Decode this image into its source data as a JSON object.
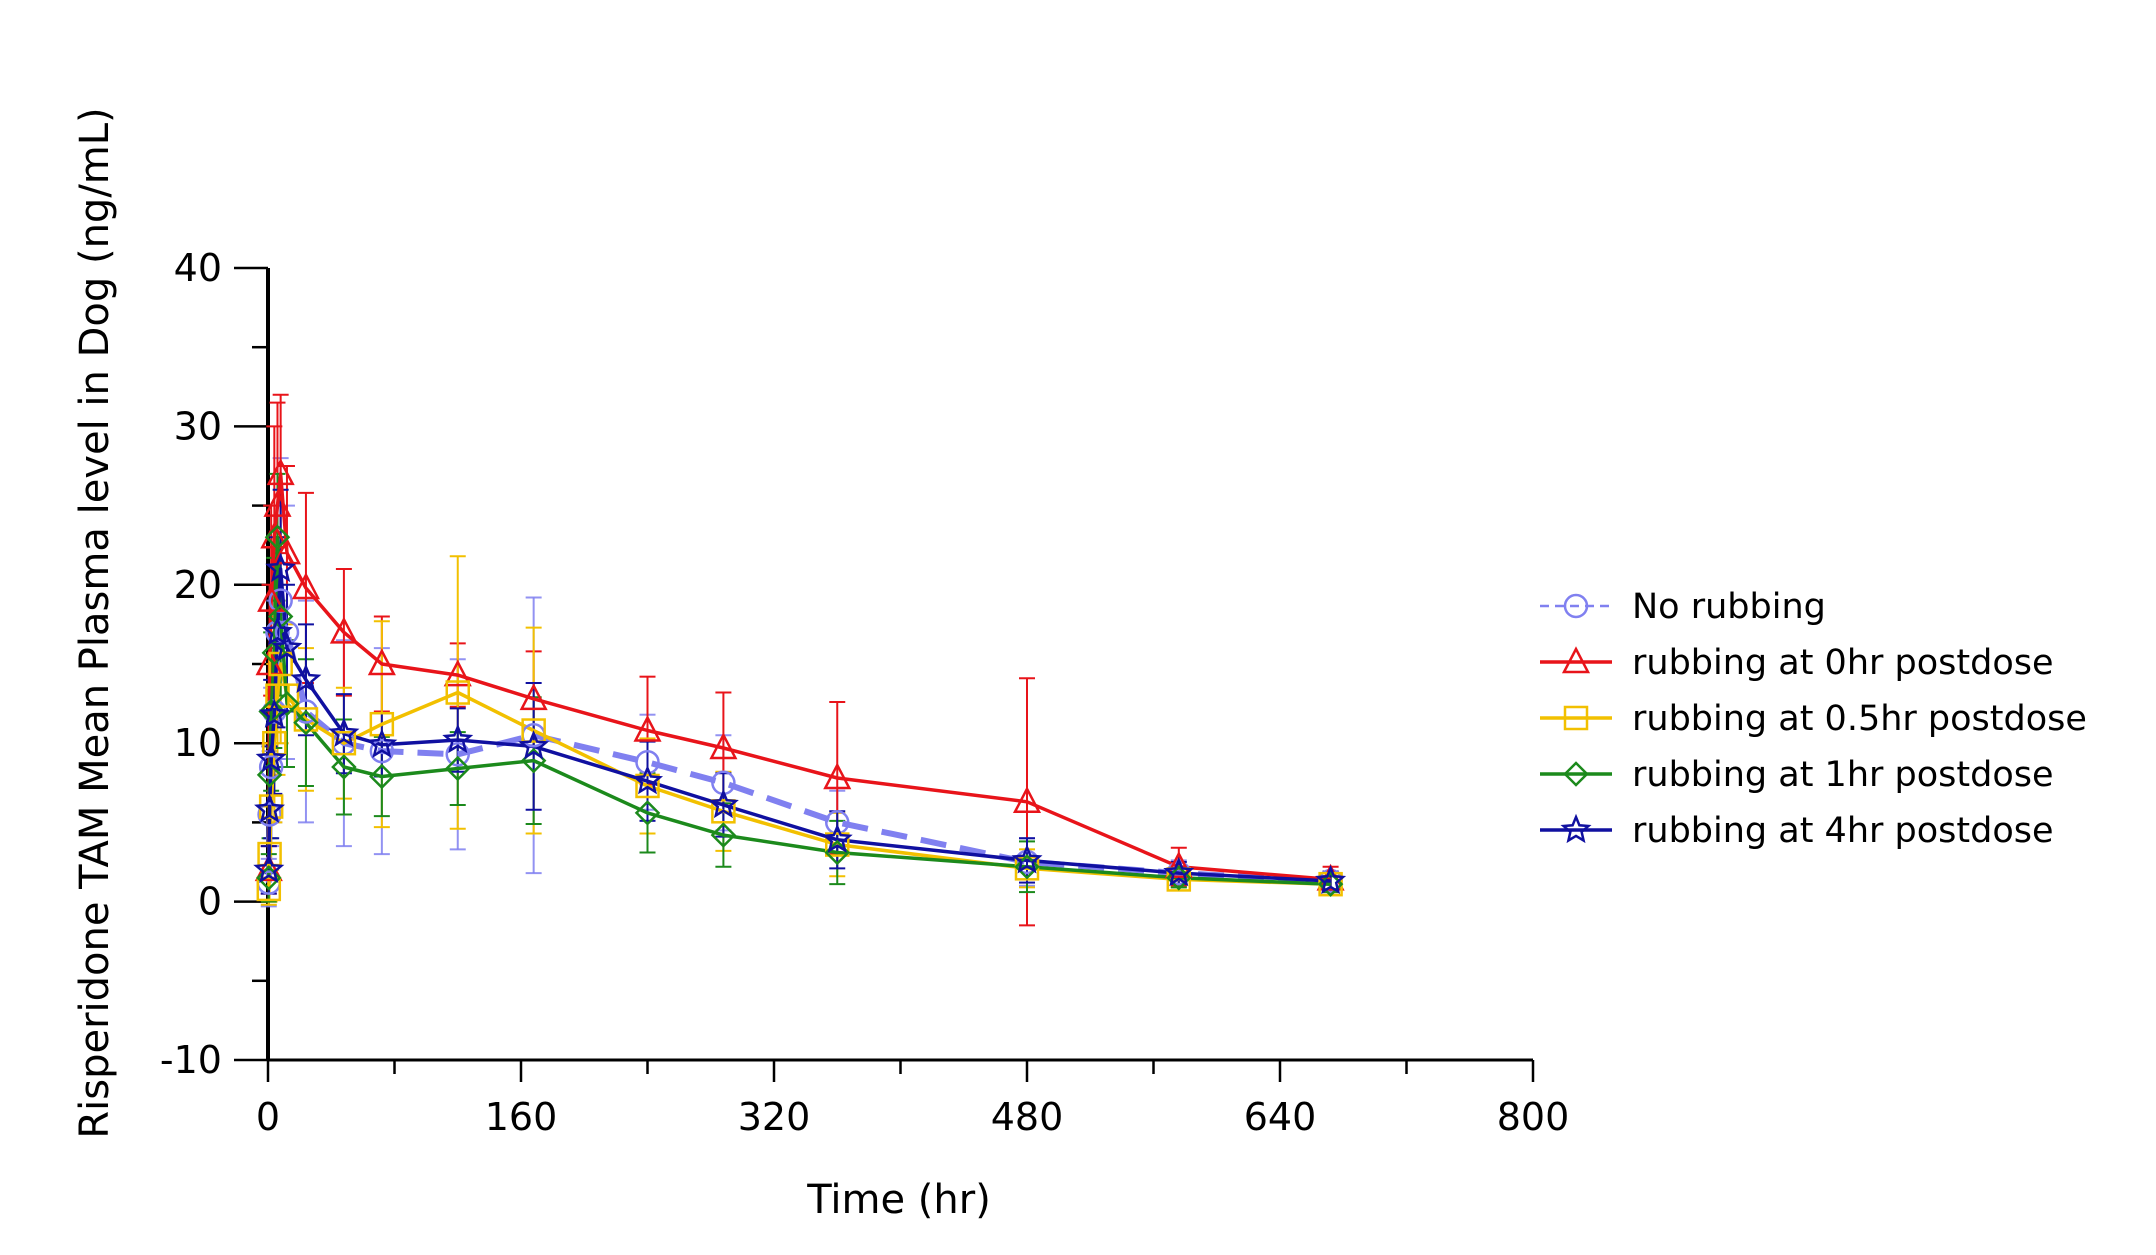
{
  "chart_data": {
    "type": "line",
    "title": "",
    "xlabel": "Time (hr)",
    "ylabel": "Risperidone TAM Mean Plasma level in Dog (ng/mL)",
    "xlim": [
      0,
      800
    ],
    "ylim": [
      -10,
      40
    ],
    "x_ticks": [
      0,
      160,
      320,
      480,
      640,
      800
    ],
    "x_tick_labels": [
      "0",
      "160",
      "320",
      "480",
      "640",
      "800"
    ],
    "y_ticks": [
      -10,
      0,
      10,
      20,
      30,
      40
    ],
    "y_tick_labels": [
      "-10",
      "0",
      "10",
      "20",
      "30",
      "40"
    ],
    "grid": false,
    "legend_position": "right",
    "series": [
      {
        "name": "No rubbing",
        "color": "#8080f0",
        "marker": "circle",
        "line_style": "dashed",
        "points": [
          {
            "x": 0.5,
            "y": 1.2,
            "err": 1.5
          },
          {
            "x": 1,
            "y": 5.5,
            "err": 4
          },
          {
            "x": 2,
            "y": 8.5,
            "err": 5
          },
          {
            "x": 4,
            "y": 12,
            "err": 7
          },
          {
            "x": 6,
            "y": 17,
            "err": 8
          },
          {
            "x": 8,
            "y": 19,
            "err": 9
          },
          {
            "x": 12,
            "y": 17,
            "err": 8
          },
          {
            "x": 24,
            "y": 12,
            "err": 7
          },
          {
            "x": 48,
            "y": 10,
            "err": 6.5
          },
          {
            "x": 72,
            "y": 9.5,
            "err": 6.5
          },
          {
            "x": 120,
            "y": 9.3,
            "err": 6
          },
          {
            "x": 168,
            "y": 10.5,
            "err": 8.7
          },
          {
            "x": 240,
            "y": 8.8,
            "err": 3
          },
          {
            "x": 288,
            "y": 7.5,
            "err": 3
          },
          {
            "x": 360,
            "y": 5,
            "err": 2
          },
          {
            "x": 480,
            "y": 2.5,
            "err": 1.5
          },
          {
            "x": 576,
            "y": 1.8,
            "err": 0.8
          },
          {
            "x": 672,
            "y": 1.3,
            "err": 0.6
          }
        ]
      },
      {
        "name": "rubbing at 0hr postdose",
        "color": "#e8141a",
        "marker": "triangle",
        "line_style": "solid",
        "points": [
          {
            "x": 0.5,
            "y": 2,
            "err": 1.5
          },
          {
            "x": 1,
            "y": 15,
            "err": 5
          },
          {
            "x": 2,
            "y": 19,
            "err": 6
          },
          {
            "x": 4,
            "y": 23,
            "err": 7
          },
          {
            "x": 6,
            "y": 25,
            "err": 6.5
          },
          {
            "x": 8,
            "y": 27,
            "err": 5
          },
          {
            "x": 12,
            "y": 22,
            "err": 5.5
          },
          {
            "x": 24,
            "y": 19.8,
            "err": 6
          },
          {
            "x": 48,
            "y": 17,
            "err": 4
          },
          {
            "x": 72,
            "y": 15,
            "err": 3
          },
          {
            "x": 120,
            "y": 14.3,
            "err": 2
          },
          {
            "x": 168,
            "y": 12.8,
            "err": 3
          },
          {
            "x": 240,
            "y": 10.8,
            "err": 3.4
          },
          {
            "x": 288,
            "y": 9.7,
            "err": 3.5
          },
          {
            "x": 360,
            "y": 7.8,
            "err": 4.8
          },
          {
            "x": 480,
            "y": 6.3,
            "err": 7.8
          },
          {
            "x": 576,
            "y": 2.2,
            "err": 1.2
          },
          {
            "x": 672,
            "y": 1.4,
            "err": 0.8
          }
        ]
      },
      {
        "name": "rubbing at 0.5hr postdose",
        "color": "#f2c000",
        "marker": "square",
        "line_style": "solid",
        "points": [
          {
            "x": 0.5,
            "y": 0.8,
            "err": 1
          },
          {
            "x": 1,
            "y": 3,
            "err": 3
          },
          {
            "x": 2,
            "y": 6,
            "err": 4
          },
          {
            "x": 4,
            "y": 10,
            "err": 5
          },
          {
            "x": 6,
            "y": 13,
            "err": 5
          },
          {
            "x": 8,
            "y": 15,
            "err": 5
          },
          {
            "x": 12,
            "y": 13,
            "err": 4.5
          },
          {
            "x": 24,
            "y": 11.5,
            "err": 4.5
          },
          {
            "x": 48,
            "y": 10,
            "err": 3.5
          },
          {
            "x": 72,
            "y": 11.2,
            "err": 6.5
          },
          {
            "x": 120,
            "y": 13.2,
            "err": 8.6
          },
          {
            "x": 168,
            "y": 10.8,
            "err": 6.5
          },
          {
            "x": 240,
            "y": 7.3,
            "err": 3
          },
          {
            "x": 288,
            "y": 5.7,
            "err": 2.5
          },
          {
            "x": 360,
            "y": 3.6,
            "err": 2
          },
          {
            "x": 480,
            "y": 2.1,
            "err": 1.2
          },
          {
            "x": 576,
            "y": 1.4,
            "err": 0.5
          },
          {
            "x": 672,
            "y": 1.1,
            "err": 0.5
          }
        ]
      },
      {
        "name": "rubbing at 1hr postdose",
        "color": "#1c8a1c",
        "marker": "diamond",
        "line_style": "solid",
        "points": [
          {
            "x": 0.5,
            "y": 1.5,
            "err": 1.5
          },
          {
            "x": 1,
            "y": 8,
            "err": 4
          },
          {
            "x": 2,
            "y": 12,
            "err": 5
          },
          {
            "x": 4,
            "y": 15.7,
            "err": 6
          },
          {
            "x": 6,
            "y": 23,
            "err": 4
          },
          {
            "x": 8,
            "y": 18,
            "err": 5
          },
          {
            "x": 12,
            "y": 12.5,
            "err": 4
          },
          {
            "x": 24,
            "y": 11.3,
            "err": 4
          },
          {
            "x": 48,
            "y": 8.5,
            "err": 3
          },
          {
            "x": 72,
            "y": 7.9,
            "err": 2.5
          },
          {
            "x": 120,
            "y": 8.4,
            "err": 2.3
          },
          {
            "x": 168,
            "y": 8.9,
            "err": 4
          },
          {
            "x": 240,
            "y": 5.6,
            "err": 2.5
          },
          {
            "x": 288,
            "y": 4.2,
            "err": 2
          },
          {
            "x": 360,
            "y": 3.1,
            "err": 2
          },
          {
            "x": 480,
            "y": 2.2,
            "err": 1.6
          },
          {
            "x": 576,
            "y": 1.5,
            "err": 0.6
          },
          {
            "x": 672,
            "y": 1.1,
            "err": 0.5
          }
        ]
      },
      {
        "name": "rubbing at 4hr postdose",
        "color": "#1010a0",
        "marker": "star",
        "line_style": "solid",
        "points": [
          {
            "x": 0.5,
            "y": 2,
            "err": 1.5
          },
          {
            "x": 1,
            "y": 5.8,
            "err": 4
          },
          {
            "x": 2,
            "y": 9,
            "err": 5
          },
          {
            "x": 4,
            "y": 11.8,
            "err": 5
          },
          {
            "x": 6,
            "y": 17,
            "err": 6
          },
          {
            "x": 8,
            "y": 21,
            "err": 5
          },
          {
            "x": 12,
            "y": 16,
            "err": 4
          },
          {
            "x": 24,
            "y": 14,
            "err": 3.5
          },
          {
            "x": 48,
            "y": 10.6,
            "err": 2.5
          },
          {
            "x": 72,
            "y": 9.9,
            "err": 2
          },
          {
            "x": 120,
            "y": 10.2,
            "err": 2
          },
          {
            "x": 168,
            "y": 9.8,
            "err": 4
          },
          {
            "x": 240,
            "y": 7.6,
            "err": 2.5
          },
          {
            "x": 288,
            "y": 6.1,
            "err": 2
          },
          {
            "x": 360,
            "y": 3.9,
            "err": 1.8
          },
          {
            "x": 480,
            "y": 2.6,
            "err": 1.4
          },
          {
            "x": 576,
            "y": 1.8,
            "err": 0.7
          },
          {
            "x": 672,
            "y": 1.3,
            "err": 0.6
          }
        ]
      }
    ]
  }
}
